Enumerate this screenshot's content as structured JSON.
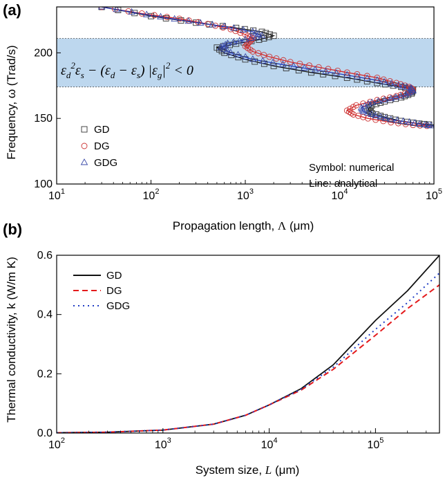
{
  "chart_data": [
    {
      "panel_label": "(a)",
      "type": "scatter",
      "xlabel_main": "Propagation length, ",
      "xlabel_symbol": "Λ",
      "xlabel_unit": " (μm)",
      "ylabel": "Frequency, ω (Trad/s)",
      "x_scale": "log",
      "xlim": [
        10,
        100000
      ],
      "ylim": [
        100,
        235
      ],
      "x_ticks": [
        {
          "value": 10,
          "base": "10",
          "exp": "1"
        },
        {
          "value": 100,
          "base": "10",
          "exp": "2"
        },
        {
          "value": 1000,
          "base": "10",
          "exp": "3"
        },
        {
          "value": 10000,
          "base": "10",
          "exp": "4"
        },
        {
          "value": 100000,
          "base": "10",
          "exp": "5"
        }
      ],
      "y_ticks": [
        "100",
        "150",
        "200"
      ],
      "y_tick_values": [
        100,
        150,
        200
      ],
      "shaded_band": {
        "y_range": [
          174,
          211
        ],
        "color": "#bdd7ee",
        "formula": "ε_d²ε_s − (ε_d − ε_s)|ε_g|² < 0"
      },
      "notes": [
        "Symbol: numerical",
        "Line: analytical"
      ],
      "legend_position": "lower-left",
      "series": [
        {
          "name": "GD",
          "marker": "square",
          "color": "#333333",
          "points": [
            [
              30,
              235
            ],
            [
              100,
              228
            ],
            [
              300,
              223
            ],
            [
              800,
              219
            ],
            [
              1500,
              216
            ],
            [
              2000,
              213
            ],
            [
              1400,
              210
            ],
            [
              800,
              207
            ],
            [
              500,
              204
            ],
            [
              600,
              200
            ],
            [
              1000,
              195
            ],
            [
              2000,
              190
            ],
            [
              5000,
              185
            ],
            [
              12000,
              181
            ],
            [
              25000,
              177
            ],
            [
              45000,
              174
            ],
            [
              60000,
              172
            ],
            [
              58000,
              169
            ],
            [
              45000,
              166
            ],
            [
              30000,
              163
            ],
            [
              22000,
              160
            ],
            [
              20000,
              157
            ],
            [
              22000,
              154
            ],
            [
              30000,
              151
            ],
            [
              45000,
              148
            ],
            [
              70000,
              146
            ],
            [
              100000,
              145
            ]
          ]
        },
        {
          "name": "DG",
          "marker": "circle",
          "color": "#cc3333",
          "points": [
            [
              30,
              235
            ],
            [
              80,
              230
            ],
            [
              200,
              226
            ],
            [
              400,
              222
            ],
            [
              700,
              218
            ],
            [
              1000,
              214
            ],
            [
              1200,
              211
            ],
            [
              1100,
              208
            ],
            [
              1000,
              205
            ],
            [
              1200,
              201
            ],
            [
              1800,
              197
            ],
            [
              3000,
              193
            ],
            [
              6000,
              189
            ],
            [
              12000,
              185
            ],
            [
              25000,
              181
            ],
            [
              40000,
              177
            ],
            [
              55000,
              174
            ],
            [
              60000,
              172
            ],
            [
              55000,
              170
            ],
            [
              40000,
              167
            ],
            [
              25000,
              164
            ],
            [
              15000,
              160
            ],
            [
              12000,
              156
            ],
            [
              14000,
              153
            ],
            [
              20000,
              150
            ],
            [
              35000,
              147
            ],
            [
              60000,
              145
            ],
            [
              100000,
              144
            ]
          ]
        },
        {
          "name": "GDG",
          "marker": "triangle",
          "color": "#3a4aa8",
          "points": [
            [
              30,
              235
            ],
            [
              90,
              229
            ],
            [
              250,
              224
            ],
            [
              600,
              220
            ],
            [
              1200,
              216
            ],
            [
              1500,
              213
            ],
            [
              1000,
              210
            ],
            [
              650,
              207
            ],
            [
              550,
              204
            ],
            [
              700,
              200
            ],
            [
              1200,
              195
            ],
            [
              2500,
              191
            ],
            [
              5500,
              187
            ],
            [
              12000,
              183
            ],
            [
              25000,
              179
            ],
            [
              42000,
              175
            ],
            [
              57000,
              173
            ],
            [
              60000,
              171
            ],
            [
              50000,
              168
            ],
            [
              35000,
              165
            ],
            [
              22000,
              162
            ],
            [
              17000,
              158
            ],
            [
              18000,
              155
            ],
            [
              24000,
              152
            ],
            [
              35000,
              149
            ],
            [
              55000,
              147
            ],
            [
              80000,
              145
            ],
            [
              100000,
              144
            ]
          ]
        }
      ],
      "lines": [
        {
          "name": "GD",
          "color": "#111111",
          "dash": "solid",
          "points": [
            [
              30,
              235
            ],
            [
              100,
              228
            ],
            [
              300,
              223
            ],
            [
              800,
              219
            ],
            [
              1500,
              216
            ],
            [
              2000,
              213
            ],
            [
              1400,
              210
            ],
            [
              800,
              207
            ],
            [
              500,
              204
            ],
            [
              600,
              200
            ],
            [
              1000,
              195
            ],
            [
              2000,
              190
            ],
            [
              5000,
              185
            ],
            [
              12000,
              181
            ],
            [
              25000,
              177
            ],
            [
              45000,
              174
            ],
            [
              60000,
              172
            ],
            [
              58000,
              169
            ],
            [
              45000,
              166
            ],
            [
              30000,
              163
            ],
            [
              22000,
              160
            ],
            [
              20000,
              157
            ],
            [
              22000,
              154
            ],
            [
              30000,
              151
            ],
            [
              45000,
              148
            ],
            [
              70000,
              146
            ],
            [
              100000,
              145
            ]
          ]
        },
        {
          "name": "DG",
          "color": "#d62728",
          "dash": "solid",
          "points": [
            [
              30,
              235
            ],
            [
              80,
              230
            ],
            [
              200,
              226
            ],
            [
              400,
              222
            ],
            [
              700,
              218
            ],
            [
              1000,
              214
            ],
            [
              1200,
              211
            ],
            [
              1100,
              208
            ],
            [
              1000,
              205
            ],
            [
              1200,
              201
            ],
            [
              1800,
              197
            ],
            [
              3000,
              193
            ],
            [
              6000,
              189
            ],
            [
              12000,
              185
            ],
            [
              25000,
              181
            ],
            [
              40000,
              177
            ],
            [
              55000,
              174
            ],
            [
              60000,
              172
            ],
            [
              55000,
              170
            ],
            [
              40000,
              167
            ],
            [
              25000,
              164
            ],
            [
              15000,
              160
            ],
            [
              12000,
              156
            ],
            [
              14000,
              153
            ],
            [
              20000,
              150
            ],
            [
              35000,
              147
            ],
            [
              60000,
              145
            ],
            [
              100000,
              144
            ]
          ]
        },
        {
          "name": "GDG",
          "color": "#1f3cc4",
          "dash": "solid",
          "points": [
            [
              30,
              235
            ],
            [
              90,
              229
            ],
            [
              250,
              224
            ],
            [
              600,
              220
            ],
            [
              1200,
              216
            ],
            [
              1500,
              213
            ],
            [
              1000,
              210
            ],
            [
              650,
              207
            ],
            [
              550,
              204
            ],
            [
              700,
              200
            ],
            [
              1200,
              195
            ],
            [
              2500,
              191
            ],
            [
              5500,
              187
            ],
            [
              12000,
              183
            ],
            [
              25000,
              179
            ],
            [
              42000,
              175
            ],
            [
              57000,
              173
            ],
            [
              60000,
              171
            ],
            [
              50000,
              168
            ],
            [
              35000,
              165
            ],
            [
              22000,
              162
            ],
            [
              17000,
              158
            ],
            [
              18000,
              155
            ],
            [
              24000,
              152
            ],
            [
              35000,
              149
            ],
            [
              55000,
              147
            ],
            [
              80000,
              145
            ],
            [
              100000,
              144
            ]
          ]
        }
      ]
    },
    {
      "panel_label": "(b)",
      "type": "line",
      "xlabel_main": "System size, ",
      "xlabel_symbol": "L",
      "xlabel_unit": " (μm)",
      "ylabel": "Thermal conductivity, k (W/m K)",
      "x_scale": "log",
      "xlim": [
        100,
        400000
      ],
      "ylim": [
        0,
        0.6
      ],
      "x_ticks": [
        {
          "value": 100,
          "base": "10",
          "exp": "2"
        },
        {
          "value": 1000,
          "base": "10",
          "exp": "3"
        },
        {
          "value": 10000,
          "base": "10",
          "exp": "4"
        },
        {
          "value": 100000,
          "base": "10",
          "exp": "5"
        }
      ],
      "y_ticks": [
        "0.0",
        "0.2",
        "0.4",
        "0.6"
      ],
      "y_tick_values": [
        0,
        0.2,
        0.4,
        0.6
      ],
      "legend_position": "top-left",
      "series": [
        {
          "name": "GD",
          "color": "#111111",
          "dash": "solid",
          "points": [
            [
              100,
              0.001
            ],
            [
              300,
              0.003
            ],
            [
              1000,
              0.01
            ],
            [
              3000,
              0.03
            ],
            [
              6000,
              0.06
            ],
            [
              10000,
              0.095
            ],
            [
              20000,
              0.15
            ],
            [
              40000,
              0.23
            ],
            [
              100000,
              0.38
            ],
            [
              200000,
              0.48
            ],
            [
              400000,
              0.6
            ]
          ]
        },
        {
          "name": "DG",
          "color": "#e41a1c",
          "dash": "dashed",
          "points": [
            [
              100,
              0.001
            ],
            [
              300,
              0.003
            ],
            [
              1000,
              0.01
            ],
            [
              3000,
              0.03
            ],
            [
              6000,
              0.06
            ],
            [
              10000,
              0.095
            ],
            [
              20000,
              0.145
            ],
            [
              40000,
              0.215
            ],
            [
              100000,
              0.33
            ],
            [
              200000,
              0.42
            ],
            [
              400000,
              0.5
            ]
          ]
        },
        {
          "name": "GDG",
          "color": "#1f3cc4",
          "dash": "dotted",
          "points": [
            [
              100,
              0.001
            ],
            [
              300,
              0.003
            ],
            [
              1000,
              0.01
            ],
            [
              3000,
              0.03
            ],
            [
              6000,
              0.06
            ],
            [
              10000,
              0.095
            ],
            [
              20000,
              0.148
            ],
            [
              40000,
              0.222
            ],
            [
              100000,
              0.35
            ],
            [
              200000,
              0.44
            ],
            [
              400000,
              0.54
            ]
          ]
        }
      ]
    }
  ]
}
